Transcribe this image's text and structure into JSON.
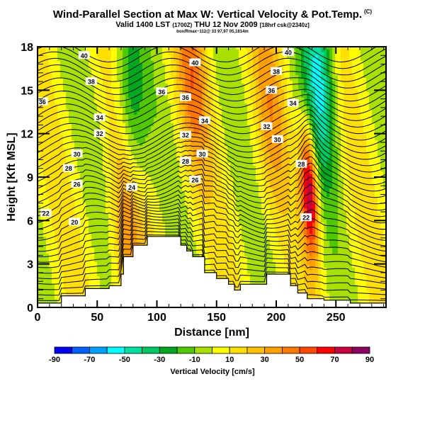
{
  "header": {
    "title": "Wind-Parallel Section at Max W: Vertical Velocity & Pot.Temp.",
    "title_tag": "(C)",
    "subtitle": "Valid 1400 LST",
    "subtitle_utc": "(1700Z)",
    "subtitle_date": "THU 12 Nov 2009",
    "subtitle_run": "[18hrf csk@2340z]",
    "info_line": "box/Rmax~112@ 33 97,97 05,1814m"
  },
  "chart_data": {
    "type": "heatmap",
    "title": "Wind-Parallel Section at Max W: Vertical Velocity & Pot.Temp.",
    "xlabel": "Distance [nm]",
    "ylabel": "Height [Kft MSL]",
    "xlim": [
      0,
      292
    ],
    "ylim": [
      0,
      18
    ],
    "x_ticks": [
      0,
      50,
      100,
      150,
      200,
      250
    ],
    "y_ticks": [
      0,
      3,
      6,
      9,
      12,
      15,
      18
    ],
    "colorbar": {
      "title": "Vertical Velocity [cm/s]",
      "levels": [
        -90,
        -80,
        -70,
        -60,
        -50,
        -40,
        -30,
        -20,
        -10,
        0,
        10,
        20,
        30,
        40,
        50,
        60,
        70,
        80,
        90
      ],
      "tick_labels": [
        "-90",
        "-70",
        "-50",
        "-30",
        "-10",
        "10",
        "30",
        "50",
        "70",
        "90"
      ],
      "colors": [
        "#0000f0",
        "#0060ff",
        "#00a0ff",
        "#00ffff",
        "#00e0a0",
        "#00c860",
        "#00a820",
        "#50c800",
        "#a8e000",
        "#ffff00",
        "#ffe000",
        "#ffc000",
        "#ffa000",
        "#ff7800",
        "#ff4800",
        "#ff0000",
        "#c8003c",
        "#8c0064"
      ]
    },
    "terrain_profile": {
      "x_nm": [
        0,
        20,
        20,
        40,
        40,
        60,
        60,
        70,
        70,
        72,
        72,
        80,
        80,
        92,
        92,
        120,
        120,
        125,
        125,
        130,
        130,
        140,
        140,
        150,
        150,
        160,
        160,
        165,
        165,
        170,
        170,
        182,
        182,
        192,
        192,
        212,
        212,
        218,
        218,
        226,
        226,
        240,
        240,
        262,
        262,
        280,
        280,
        292
      ],
      "z_kft": [
        0.3,
        0.3,
        0.8,
        0.8,
        1.3,
        1.3,
        1.5,
        1.5,
        2.3,
        2.3,
        3.5,
        3.5,
        4.3,
        4.3,
        4.9,
        4.9,
        4.3,
        4.3,
        3.9,
        3.9,
        3.5,
        3.5,
        2.4,
        2.4,
        2.0,
        2.0,
        1.6,
        1.6,
        1.2,
        1.2,
        1.6,
        1.6,
        1.6,
        1.6,
        2.3,
        2.3,
        1.5,
        1.5,
        1.0,
        1.0,
        0.6,
        0.6,
        0.5,
        0.5,
        0.3,
        0.3,
        0.3,
        0.3
      ]
    },
    "w_field_features": [
      {
        "name": "strong updraft",
        "x_nm": 228,
        "z_kft": 8,
        "w_cms": 85
      },
      {
        "name": "upper downdraft",
        "x_nm": 236,
        "z_kft": 16,
        "w_cms": -55
      },
      {
        "name": "downdraft band",
        "x_nm": 78,
        "z_kft": 14,
        "w_cms": -35
      },
      {
        "name": "updraft band",
        "x_nm": 130,
        "z_kft": 16,
        "w_cms": 35
      },
      {
        "name": "updraft band",
        "x_nm": 195,
        "z_kft": 14,
        "w_cms": 25
      },
      {
        "name": "lee updraft",
        "x_nm": 75,
        "z_kft": 5,
        "w_cms": 35
      }
    ],
    "contour_labels": [
      {
        "text": "40",
        "x_nm": 39,
        "z_kft": 17.4
      },
      {
        "text": "40",
        "x_nm": 132,
        "z_kft": 16.9
      },
      {
        "text": "40",
        "x_nm": 210,
        "z_kft": 17.6
      },
      {
        "text": "38",
        "x_nm": 45,
        "z_kft": 15.6
      },
      {
        "text": "38",
        "x_nm": 200,
        "z_kft": 16.3
      },
      {
        "text": "36",
        "x_nm": 104,
        "z_kft": 14.9
      },
      {
        "text": "36",
        "x_nm": 124,
        "z_kft": 14.5
      },
      {
        "text": "36",
        "x_nm": 196,
        "z_kft": 15.0
      },
      {
        "text": "36",
        "x_nm": 4,
        "z_kft": 14.2
      },
      {
        "text": "34",
        "x_nm": 52,
        "z_kft": 13.1
      },
      {
        "text": "34",
        "x_nm": 140,
        "z_kft": 12.9
      },
      {
        "text": "34",
        "x_nm": 214,
        "z_kft": 14.1
      },
      {
        "text": "32",
        "x_nm": 52,
        "z_kft": 12.0
      },
      {
        "text": "32",
        "x_nm": 124,
        "z_kft": 11.9
      },
      {
        "text": "32",
        "x_nm": 192,
        "z_kft": 12.5
      },
      {
        "text": "30",
        "x_nm": 33,
        "z_kft": 10.6
      },
      {
        "text": "30",
        "x_nm": 138,
        "z_kft": 10.6
      },
      {
        "text": "30",
        "x_nm": 201,
        "z_kft": 11.6
      },
      {
        "text": "28",
        "x_nm": 26,
        "z_kft": 9.6
      },
      {
        "text": "28",
        "x_nm": 124,
        "z_kft": 10.1
      },
      {
        "text": "28",
        "x_nm": 221,
        "z_kft": 9.9
      },
      {
        "text": "26",
        "x_nm": 33,
        "z_kft": 8.5
      },
      {
        "text": "26",
        "x_nm": 132,
        "z_kft": 8.8
      },
      {
        "text": "24",
        "x_nm": 79,
        "z_kft": 8.3
      },
      {
        "text": "22",
        "x_nm": 7,
        "z_kft": 6.5
      },
      {
        "text": "22",
        "x_nm": 225,
        "z_kft": 6.2
      },
      {
        "text": "20",
        "x_nm": 31,
        "z_kft": 5.9
      }
    ],
    "contour_variable": "Potential Temperature",
    "grid": false,
    "legend": "bottom colorbar"
  }
}
